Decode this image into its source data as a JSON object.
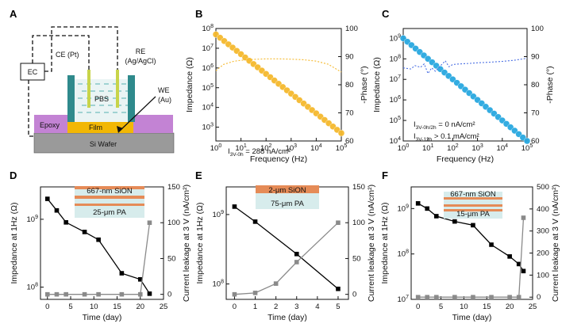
{
  "panels": {
    "A": "A",
    "B": "B",
    "C": "C",
    "D": "D",
    "E": "E",
    "F": "F"
  },
  "schematic": {
    "ec": "EC",
    "ce": "CE (Pt)",
    "re_line1": "RE",
    "re_line2": "(Ag/AgCl)",
    "we_line1": "WE",
    "we_line2": "(Au)",
    "pbs": "PBS",
    "epoxy": "Epoxy",
    "film": "Film",
    "wafer": "Si Wafer",
    "colors": {
      "epoxy": "#c383d4",
      "film": "#f2b705",
      "wafer": "#9a9a9a",
      "electrode": "#2f8a8c",
      "pbs": "#7fc3c4"
    }
  },
  "insets": {
    "D": {
      "top": "667-nm SiON",
      "bottom": "25-μm PA"
    },
    "E": {
      "top": "2-μm SiON",
      "bottom": "75-μm PA"
    },
    "F": {
      "top": "667-nm SiON",
      "bottom": "15-μm PA"
    }
  },
  "chart_data": [
    {
      "panel": "B",
      "type": "line",
      "xlabel": "Frequency (Hz)",
      "ylabel": "Impedance (Ω)",
      "ylabel_right": "-Phase (°)",
      "xscale": "log",
      "yscale": "log",
      "xlim": [
        1,
        100000
      ],
      "ylim": [
        200,
        100000000
      ],
      "ylim_right": [
        60,
        100
      ],
      "xticks": [
        "10^0",
        "10^1",
        "10^2",
        "10^3",
        "10^4",
        "10^5"
      ],
      "yticks": [
        "10^3",
        "10^4",
        "10^5",
        "10^6",
        "10^7",
        "10^8"
      ],
      "yticks_right": [
        "60",
        "70",
        "80",
        "90",
        "100"
      ],
      "annotation": {
        "prefix": "I",
        "sub": "3V-0h",
        "value": " = 288 nA/cm²"
      },
      "series": [
        {
          "role": "impedance",
          "color": "#f5b92e",
          "x": [
            1,
            1.47,
            2.15,
            3.16,
            4.64,
            6.81,
            10,
            14.7,
            21.5,
            31.6,
            46.4,
            68.1,
            100,
            147,
            215,
            316,
            464,
            681,
            1000,
            1470,
            2150,
            3160,
            4640,
            6810,
            10000,
            14700,
            21500,
            31600,
            46400,
            68100,
            100000
          ],
          "y": [
            50000000,
            34000000,
            23200000,
            15800000,
            10800000,
            7340000,
            5000000,
            3410000,
            2320000,
            1580000,
            1080000,
            734000,
            500000,
            341000,
            232000,
            158000,
            108000,
            73400,
            50000,
            34100,
            23200,
            15800,
            10800,
            7340,
            5000,
            3410,
            2320,
            1580,
            1080,
            734,
            500
          ]
        },
        {
          "role": "phase",
          "color": "#f5b92e",
          "style": "dotted",
          "x": [
            1,
            2,
            5,
            10,
            30,
            100,
            300,
            1000,
            3000,
            10000,
            30000,
            100000
          ],
          "y": [
            85,
            87.2,
            88.3,
            88.7,
            89,
            89.2,
            89.2,
            89.1,
            88.9,
            88.4,
            87.3,
            84.5
          ]
        }
      ]
    },
    {
      "panel": "C",
      "type": "line",
      "xlabel": "Frequency (Hz)",
      "ylabel": "Impedance (Ω)",
      "ylabel_right": "-Phase (°)",
      "xscale": "log",
      "yscale": "log",
      "xlim": [
        1,
        100000
      ],
      "ylim": [
        10000,
        3000000000
      ],
      "ylim_right": [
        60,
        100
      ],
      "xticks": [
        "10^0",
        "10^1",
        "10^2",
        "10^3",
        "10^4",
        "10^5"
      ],
      "yticks": [
        "10^4",
        "10^5",
        "10^6",
        "10^7",
        "10^8",
        "10^9"
      ],
      "yticks_right": [
        "60",
        "70",
        "80",
        "90",
        "100"
      ],
      "annotation1": {
        "prefix": "I",
        "sub": "3V-0h/2h",
        "value": " = 0 nA/cm²"
      },
      "annotation2": {
        "prefix": "I",
        "sub": "3V-12h",
        "value": " > 0.1 mA/cm²"
      },
      "series": [
        {
          "role": "impedance",
          "color": "#29a8e0",
          "x": [
            1,
            1.47,
            2.15,
            3.16,
            4.64,
            6.81,
            10,
            14.7,
            21.5,
            31.6,
            46.4,
            68.1,
            100,
            147,
            215,
            316,
            464,
            681,
            1000,
            1470,
            2150,
            3160,
            4640,
            6810,
            10000,
            14700,
            21500,
            31600,
            46400,
            68100,
            100000
          ],
          "y": [
            1000000000,
            680000000,
            464000000,
            316000000,
            215000000,
            147000000,
            100000000,
            68000000,
            46400000,
            31600000,
            21500000,
            14700000,
            10000000,
            6800000,
            4640000,
            3160000,
            2150000,
            1470000,
            1000000,
            680000,
            464000,
            316000,
            215000,
            147000,
            100000,
            68000,
            46400,
            31600,
            21500,
            14700,
            10000
          ]
        },
        {
          "role": "phase",
          "color": "#4a6fe3",
          "style": "dotted",
          "x": [
            1,
            2,
            3,
            5,
            7,
            10,
            14,
            20,
            30,
            50,
            70,
            100,
            200,
            500,
            1000,
            3000,
            10000,
            30000,
            100000
          ],
          "y": [
            86,
            85.6,
            86.8,
            86.2,
            87.4,
            84,
            86,
            84.8,
            86.5,
            88.5,
            86.4,
            87.2,
            87.4,
            87.6,
            87.8,
            88,
            88.3,
            88.7,
            89.4
          ]
        }
      ]
    },
    {
      "panel": "D",
      "type": "line",
      "xlabel": "Time (day)",
      "ylabel": "Impedance at 1Hz (Ω)",
      "ylabel_right": "Current leakage at 3 V (nA/cm²)",
      "xlim": [
        -1.5,
        25
      ],
      "ylim": [
        66000000,
        3000000000
      ],
      "ylim_right": [
        -7,
        150
      ],
      "yscale": "log",
      "xticks": [
        "0",
        "5",
        "10",
        "15",
        "20",
        "25"
      ],
      "yticks": [
        "10^8",
        "10^9"
      ],
      "yticks_right": [
        "0",
        "50",
        "100",
        "150"
      ],
      "series": [
        {
          "role": "impedance",
          "color": "#000000",
          "x": [
            0,
            2,
            4,
            8,
            11,
            16,
            20,
            22
          ],
          "y": [
            2000000000,
            1350000000,
            900000000,
            650000000,
            500000000,
            160000000,
            130000000,
            80000000
          ]
        },
        {
          "role": "leakage",
          "color": "#8a8a8a",
          "x": [
            0,
            2,
            4,
            8,
            11,
            16,
            20,
            22
          ],
          "y": [
            0,
            0,
            0,
            0,
            0,
            0,
            0,
            100
          ]
        }
      ]
    },
    {
      "panel": "E",
      "type": "line",
      "xlabel": "Time (day)",
      "ylabel": "Impedance at 1Hz (Ω)",
      "ylabel_right": "Current leakage at 3 V (nA/cm²)",
      "xlim": [
        -0.4,
        5.5
      ],
      "ylim": [
        60000000,
        2500000000
      ],
      "ylim_right": [
        -7,
        150
      ],
      "yscale": "log",
      "xticks": [
        "0",
        "1",
        "2",
        "3",
        "4",
        "5"
      ],
      "yticks": [
        "10^8",
        "10^9"
      ],
      "yticks_right": [
        "0",
        "50",
        "100",
        "150"
      ],
      "series": [
        {
          "role": "impedance",
          "color": "#000000",
          "x": [
            0,
            1,
            3,
            5
          ],
          "y": [
            1300000000,
            790000000,
            270000000,
            85000000
          ]
        },
        {
          "role": "leakage",
          "color": "#8a8a8a",
          "x": [
            0,
            1,
            2,
            3,
            5
          ],
          "y": [
            0,
            2,
            15,
            45,
            100
          ]
        }
      ]
    },
    {
      "panel": "F",
      "type": "line",
      "xlabel": "Time (day)",
      "ylabel": "Impedance at 1Hz (Ω)",
      "ylabel_right": "Current leakage at 3 V (nA/cm²)",
      "xlim": [
        -1.5,
        25
      ],
      "ylim": [
        10000000,
        3000000000
      ],
      "ylim_right": [
        -10,
        500
      ],
      "yscale": "log",
      "xticks": [
        "0",
        "5",
        "10",
        "15",
        "20",
        "25"
      ],
      "yticks": [
        "10^7",
        "10^8",
        "10^9"
      ],
      "yticks_right": [
        "0",
        "100",
        "200",
        "300",
        "400",
        "500"
      ],
      "series": [
        {
          "role": "impedance",
          "color": "#000000",
          "x": [
            0,
            2,
            4,
            8,
            12,
            16,
            20,
            22,
            23
          ],
          "y": [
            1300000000,
            1000000000,
            680000000,
            520000000,
            430000000,
            160000000,
            88000000,
            60000000,
            42000000
          ]
        },
        {
          "role": "leakage",
          "color": "#8a8a8a",
          "x": [
            0,
            2,
            4,
            8,
            12,
            16,
            20,
            22,
            23
          ],
          "y": [
            0,
            0,
            0,
            0,
            0,
            0,
            0,
            0,
            360
          ]
        }
      ]
    }
  ]
}
